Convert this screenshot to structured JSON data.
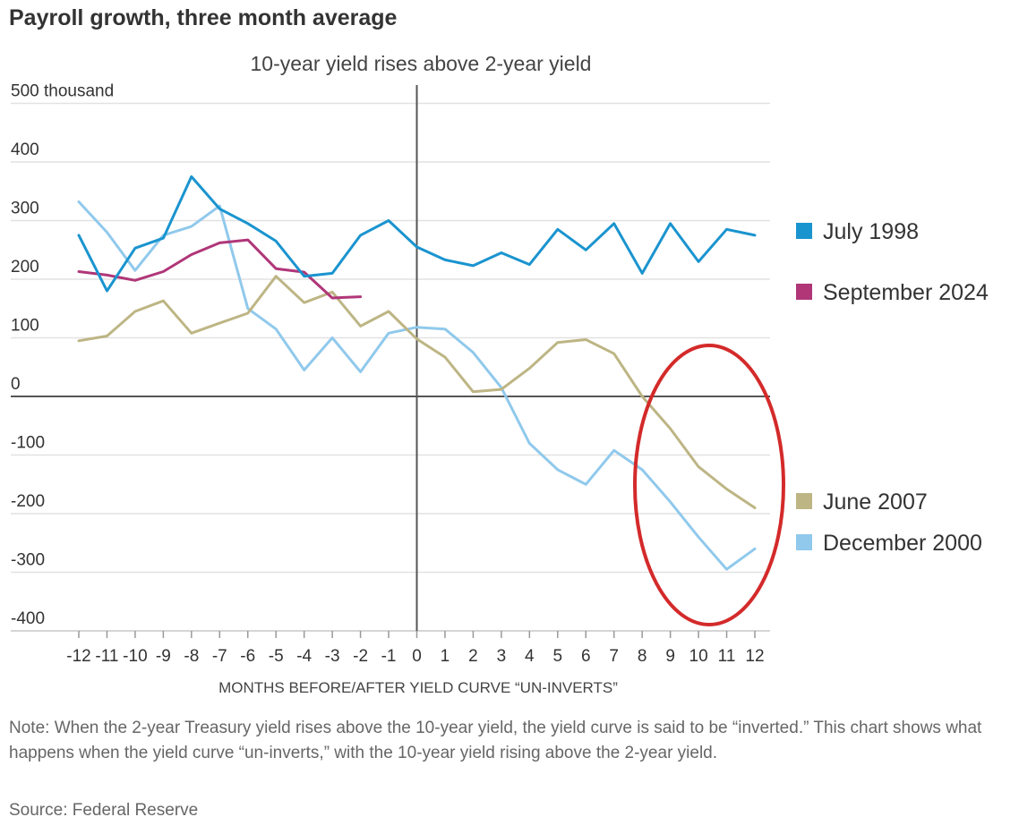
{
  "title": "Payroll growth, three month average",
  "note": "Note: When the 2-year Treasury yield rises above the 10-year yield, the yield curve is said to be “inverted.” This chart shows what happens when the yield curve “un-inverts,” with the 10-year yield rising above the 2-year yield.",
  "source": "Source: Federal Reserve",
  "chart_data": {
    "type": "line",
    "title": "",
    "annotation": "10-year yield rises above 2-year yield",
    "xlabel": "MONTHS BEFORE/AFTER YIELD CURVE “UN-INVERTS”",
    "ylabel": "",
    "ylim": [
      -400,
      500
    ],
    "xlim": [
      -12,
      12
    ],
    "y_ticks": [
      500,
      400,
      300,
      200,
      100,
      0,
      -100,
      -200,
      -300,
      -400
    ],
    "y_tick_labels": [
      "500 thousand",
      "400",
      "300",
      "200",
      "100",
      "0",
      "-100",
      "-200",
      "-300",
      "-400"
    ],
    "x_ticks": [
      -12,
      -11,
      -10,
      -9,
      -8,
      -7,
      -6,
      -5,
      -4,
      -3,
      -2,
      -1,
      0,
      1,
      2,
      3,
      4,
      5,
      6,
      7,
      8,
      9,
      10,
      11,
      12
    ],
    "grid": true,
    "legend_position": "right",
    "highlight": "red ellipse around months 8 to 12",
    "series": [
      {
        "name": "July 1998",
        "color": "#1a94cf",
        "x": [
          -12,
          -11,
          -10,
          -9,
          -8,
          -7,
          -6,
          -5,
          -4,
          -3,
          -2,
          -1,
          0,
          1,
          2,
          3,
          4,
          5,
          6,
          7,
          8,
          9,
          10,
          11,
          12
        ],
        "values": [
          275,
          180,
          253,
          270,
          375,
          320,
          295,
          265,
          205,
          210,
          275,
          300,
          255,
          233,
          223,
          245,
          225,
          285,
          250,
          295,
          210,
          295,
          230,
          285,
          275
        ]
      },
      {
        "name": "September 2024",
        "color": "#b03678",
        "x": [
          -12,
          -11,
          -10,
          -9,
          -8,
          -7,
          -6,
          -5,
          -4,
          -3,
          -2
        ],
        "values": [
          213,
          207,
          198,
          213,
          242,
          262,
          267,
          218,
          212,
          168,
          170
        ]
      },
      {
        "name": "June 2007",
        "color": "#bdb584",
        "x": [
          -12,
          -11,
          -10,
          -9,
          -8,
          -7,
          -6,
          -5,
          -4,
          -3,
          -2,
          -1,
          0,
          1,
          2,
          3,
          4,
          5,
          6,
          7,
          8,
          9,
          10,
          11,
          12
        ],
        "values": [
          95,
          103,
          145,
          163,
          108,
          125,
          142,
          205,
          160,
          178,
          120,
          145,
          98,
          67,
          8,
          12,
          48,
          92,
          97,
          73,
          0,
          -55,
          -120,
          -158,
          -190
        ]
      },
      {
        "name": "December 2000",
        "color": "#90c9ec",
        "x": [
          -12,
          -11,
          -10,
          -9,
          -8,
          -7,
          -6,
          -5,
          -4,
          -3,
          -2,
          -1,
          0,
          1,
          2,
          3,
          4,
          5,
          6,
          7,
          8,
          9,
          10,
          11,
          12
        ],
        "values": [
          332,
          280,
          215,
          275,
          290,
          325,
          150,
          115,
          45,
          100,
          42,
          108,
          118,
          115,
          75,
          15,
          -80,
          -125,
          -150,
          -92,
          -125,
          -180,
          -240,
          -295,
          -260
        ]
      }
    ]
  },
  "colors": {
    "axis": "#555555",
    "grid": "#e2e2e2",
    "highlight": "#d42a2a"
  }
}
